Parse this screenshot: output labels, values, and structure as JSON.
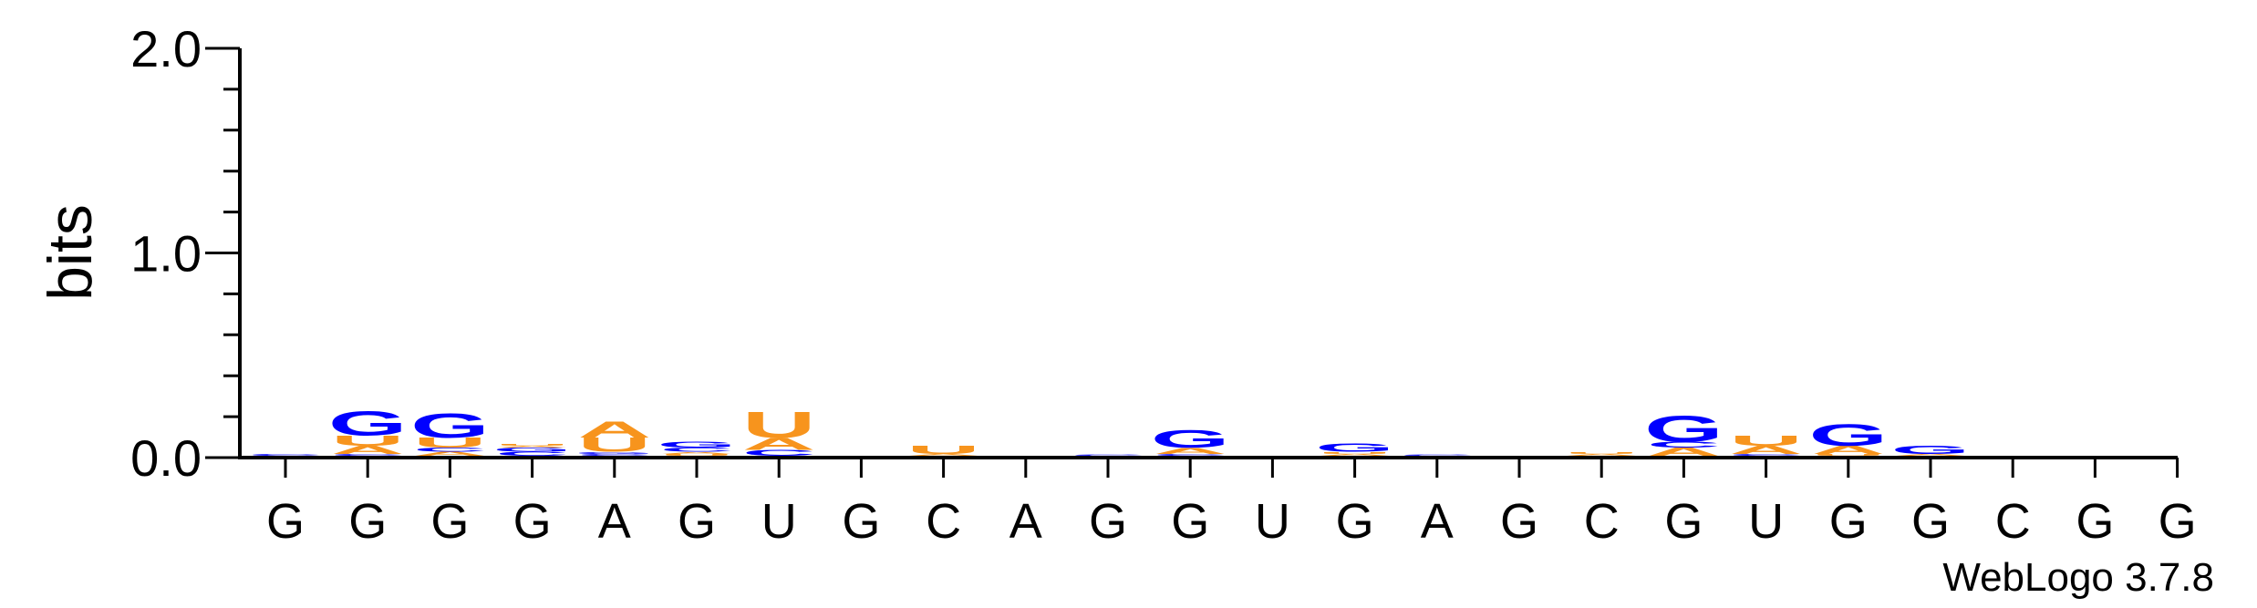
{
  "chart_data": {
    "type": "sequence-logo",
    "ylabel": "bits",
    "ylim": [
      0,
      2.0
    ],
    "yticks": [
      {
        "value": 0.0,
        "label": "0.0"
      },
      {
        "value": 1.0,
        "label": "1.0"
      },
      {
        "value": 2.0,
        "label": "2.0"
      }
    ],
    "colors": {
      "A": "#f7941d",
      "U": "#f7941d",
      "G": "#0000ff",
      "C": "#0000ff"
    },
    "positions": [
      {
        "label": "G",
        "stack": [
          {
            "letter": "C",
            "bits": 0.01
          }
        ]
      },
      {
        "label": "G",
        "stack": [
          {
            "letter": "C",
            "bits": 0.01
          },
          {
            "letter": "A",
            "bits": 0.04
          },
          {
            "letter": "U",
            "bits": 0.05
          },
          {
            "letter": "G",
            "bits": 0.12
          }
        ]
      },
      {
        "label": "G",
        "stack": [
          {
            "letter": "A",
            "bits": 0.02
          },
          {
            "letter": "C",
            "bits": 0.02
          },
          {
            "letter": "U",
            "bits": 0.05
          },
          {
            "letter": "G",
            "bits": 0.12
          }
        ]
      },
      {
        "label": "G",
        "stack": [
          {
            "letter": "C",
            "bits": 0.02
          },
          {
            "letter": "G",
            "bits": 0.02
          },
          {
            "letter": "A",
            "bits": 0.01
          },
          {
            "letter": "U",
            "bits": 0.01
          }
        ]
      },
      {
        "label": "A",
        "stack": [
          {
            "letter": "C",
            "bits": 0.01
          },
          {
            "letter": "G",
            "bits": 0.01
          },
          {
            "letter": "U",
            "bits": 0.07
          },
          {
            "letter": "A",
            "bits": 0.08
          }
        ]
      },
      {
        "label": "G",
        "stack": [
          {
            "letter": "U",
            "bits": 0.01
          },
          {
            "letter": "A",
            "bits": 0.01
          },
          {
            "letter": "C",
            "bits": 0.02
          },
          {
            "letter": "G",
            "bits": 0.03
          }
        ]
      },
      {
        "label": "U",
        "stack": [
          {
            "letter": "C",
            "bits": 0.03
          },
          {
            "letter": "A",
            "bits": 0.06
          },
          {
            "letter": "U",
            "bits": 0.13
          }
        ]
      },
      {
        "label": "G",
        "stack": []
      },
      {
        "label": "C",
        "stack": [
          {
            "letter": "A",
            "bits": 0.01
          },
          {
            "letter": "U",
            "bits": 0.04
          }
        ]
      },
      {
        "label": "A",
        "stack": []
      },
      {
        "label": "G",
        "stack": [
          {
            "letter": "C",
            "bits": 0.005
          }
        ]
      },
      {
        "label": "G",
        "stack": [
          {
            "letter": "C",
            "bits": 0.01
          },
          {
            "letter": "A",
            "bits": 0.03
          },
          {
            "letter": "G",
            "bits": 0.09
          }
        ]
      },
      {
        "label": "U",
        "stack": []
      },
      {
        "label": "G",
        "stack": [
          {
            "letter": "A",
            "bits": 0.01
          },
          {
            "letter": "U",
            "bits": 0.01
          },
          {
            "letter": "G",
            "bits": 0.04
          }
        ]
      },
      {
        "label": "A",
        "stack": [
          {
            "letter": "C",
            "bits": 0.005
          }
        ]
      },
      {
        "label": "G",
        "stack": []
      },
      {
        "label": "C",
        "stack": [
          {
            "letter": "A",
            "bits": 0.01
          },
          {
            "letter": "U",
            "bits": 0.01
          }
        ]
      },
      {
        "label": "G",
        "stack": [
          {
            "letter": "A",
            "bits": 0.04
          },
          {
            "letter": "C",
            "bits": 0.03
          },
          {
            "letter": "G",
            "bits": 0.13
          }
        ]
      },
      {
        "label": "U",
        "stack": [
          {
            "letter": "C",
            "bits": 0.01
          },
          {
            "letter": "A",
            "bits": 0.04
          },
          {
            "letter": "U",
            "bits": 0.05
          }
        ]
      },
      {
        "label": "G",
        "stack": [
          {
            "letter": "U",
            "bits": 0.01
          },
          {
            "letter": "A",
            "bits": 0.04
          },
          {
            "letter": "G",
            "bits": 0.11
          }
        ]
      },
      {
        "label": "G",
        "stack": [
          {
            "letter": "A",
            "bits": 0.01
          },
          {
            "letter": "G",
            "bits": 0.04
          }
        ]
      },
      {
        "label": "C",
        "stack": []
      },
      {
        "label": "G",
        "stack": []
      },
      {
        "label": "G",
        "stack": []
      }
    ],
    "footer": "WebLogo 3.7.8"
  }
}
